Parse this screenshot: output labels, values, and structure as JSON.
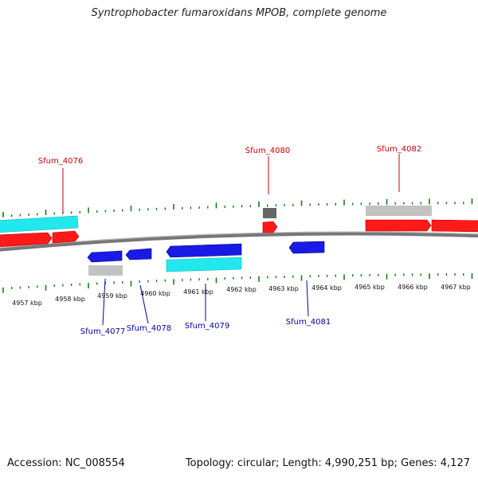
{
  "header": {
    "title": "Syntrophobacter fumaroxidans MPOB, complete genome"
  },
  "footer": {
    "accession": "Accession: NC_008554",
    "summary": "Topology: circular; Length: 4,990,251 bp; Genes: 4,127"
  },
  "colors": {
    "forward_gene": "#ff1a1a",
    "reverse_gene": "#1a1ae6",
    "forward_rna": "#22e8ee",
    "reverse_rna": "#22e8ee",
    "pseudo": "#c0c0c0",
    "other": "#666666",
    "backbone": "#777777",
    "tick": "#1a7a1a",
    "label_top": "#cc0000",
    "label_bottom": "#0000aa"
  },
  "kbp_labels": [
    "4957 kbp",
    "4958 kbp",
    "4959 kbp",
    "4960 kbp",
    "4961 kbp",
    "4962 kbp",
    "4963 kbp",
    "4964 kbp",
    "4965 kbp",
    "4966 kbp",
    "4967 kbp"
  ],
  "gene_labels_top": [
    "Sfum_4076",
    "Sfum_4080",
    "Sfum_4082"
  ],
  "gene_labels_bottom": [
    "Sfum_4077",
    "Sfum_4078",
    "Sfum_4079",
    "Sfum_4081"
  ]
}
